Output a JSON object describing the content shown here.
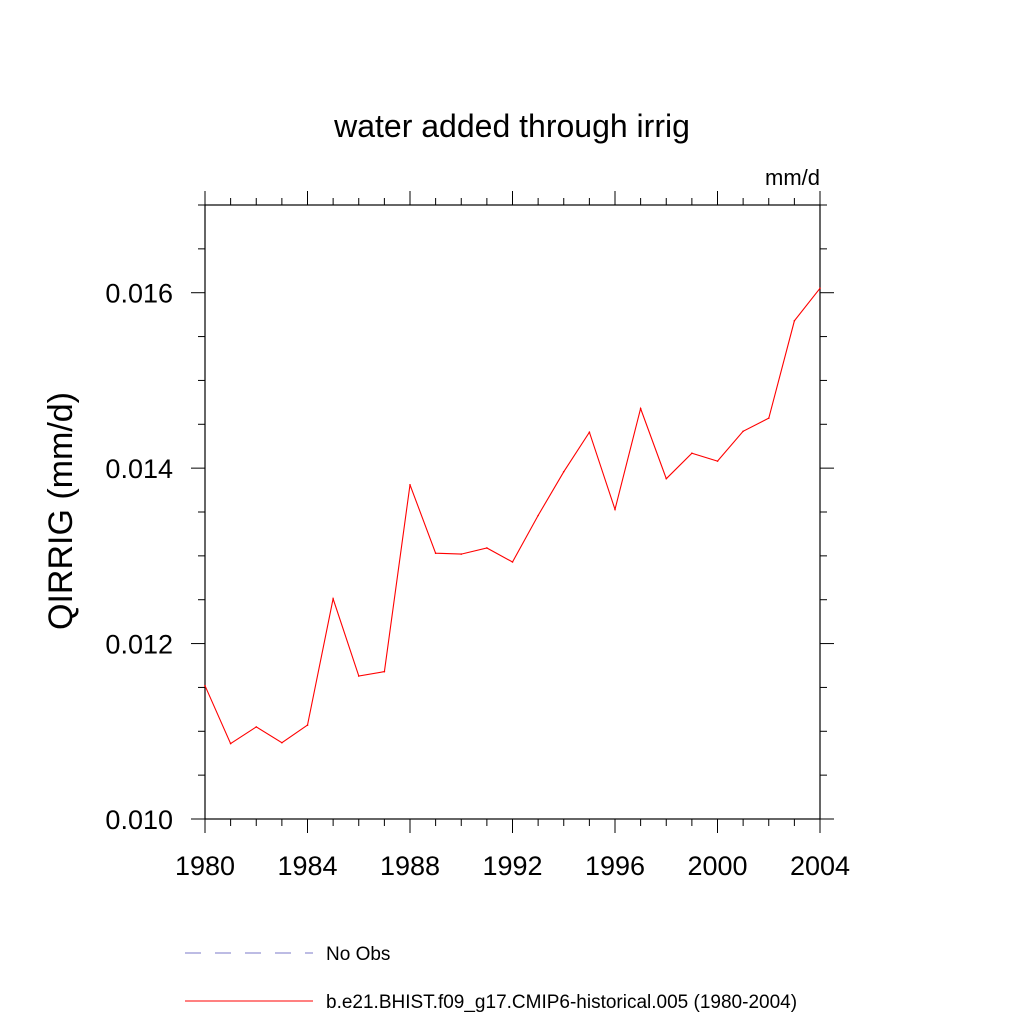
{
  "chart_data": {
    "type": "line",
    "title": "water added through irrig",
    "units": "mm/d",
    "ylabel": "QIRRIG  (mm/d)",
    "xlabel": "",
    "xlim": [
      1980,
      2004
    ],
    "ylim": [
      0.01,
      0.017
    ],
    "x_ticks": [
      1980,
      1984,
      1988,
      1992,
      1996,
      2000,
      2004
    ],
    "x_tick_labels": [
      "1980",
      "1984",
      "1988",
      "1992",
      "1996",
      "2000",
      "2004"
    ],
    "y_ticks": [
      0.01,
      0.012,
      0.014,
      0.016
    ],
    "y_tick_labels": [
      "0.010",
      "0.012",
      "0.014",
      "0.016"
    ],
    "grid": false,
    "legend_position": "bottom",
    "series": [
      {
        "name": "No Obs",
        "color": "#7b78c8",
        "style": "dashed",
        "x": [],
        "values": []
      },
      {
        "name": "b.e21.BHIST.f09_g17.CMIP6-historical.005 (1980-2004)",
        "color": "#ff0000",
        "style": "solid",
        "x": [
          1980,
          1981,
          1982,
          1983,
          1984,
          1985,
          1986,
          1987,
          1988,
          1989,
          1990,
          1991,
          1992,
          1993,
          1994,
          1995,
          1996,
          1997,
          1998,
          1999,
          2000,
          2001,
          2002,
          2003,
          2004
        ],
        "values": [
          0.01152,
          0.01086,
          0.01105,
          0.01087,
          0.01107,
          0.01251,
          0.01163,
          0.01168,
          0.01381,
          0.01303,
          0.01302,
          0.01309,
          0.01293,
          0.01346,
          0.01396,
          0.01441,
          0.01353,
          0.01468,
          0.01388,
          0.01417,
          0.01408,
          0.01442,
          0.01457,
          0.01568,
          0.01605
        ]
      }
    ]
  }
}
